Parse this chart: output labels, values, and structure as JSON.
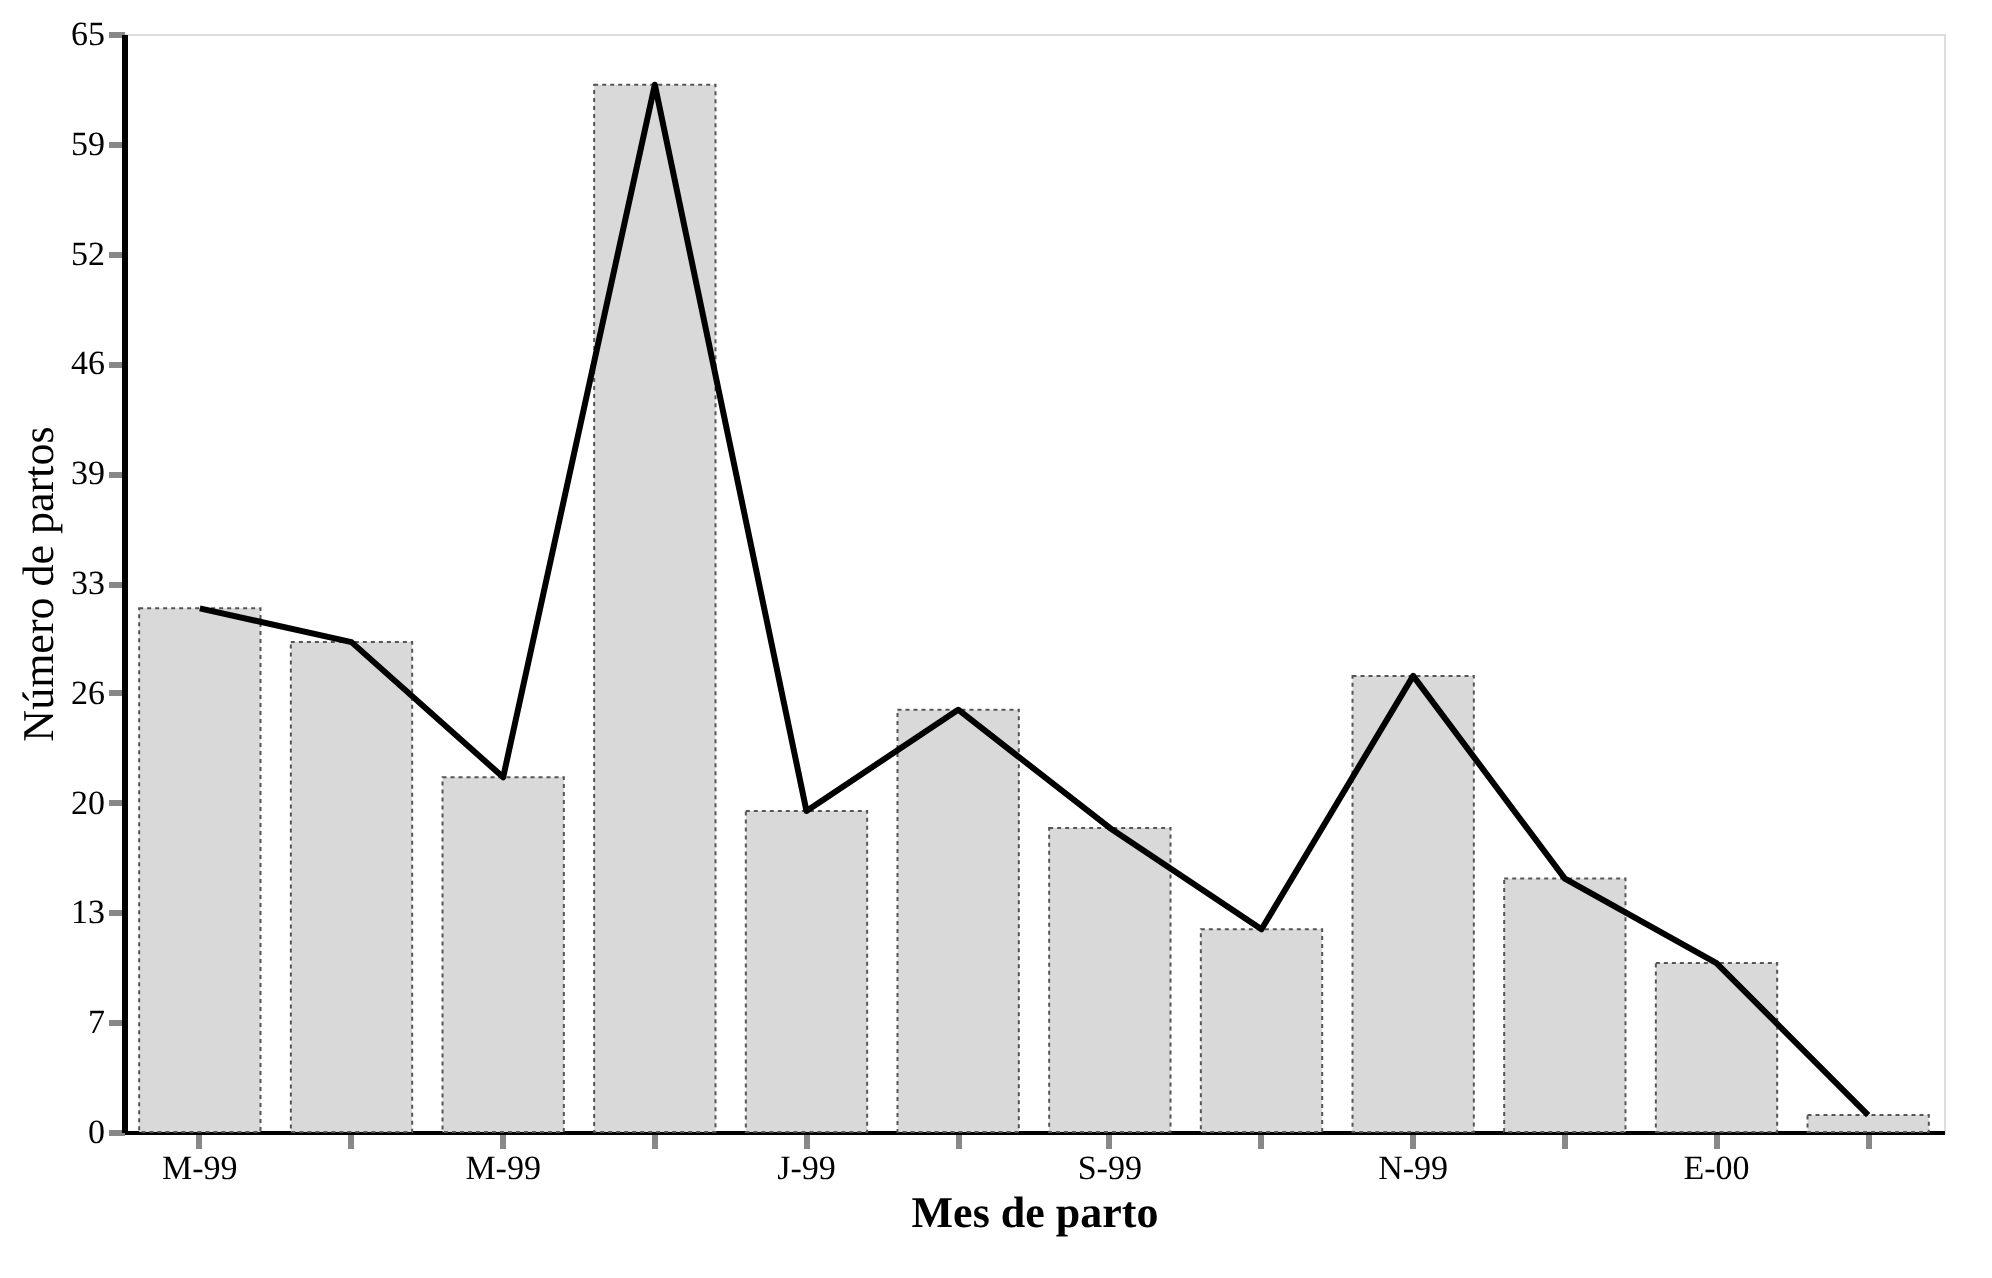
{
  "chart_data": {
    "type": "bar",
    "xlabel": "Mes de parto",
    "ylabel": "Número de partos",
    "categories": [
      "M-99",
      null,
      "M-99",
      null,
      "J-99",
      null,
      "S-99",
      null,
      "N-99",
      null,
      "E-00",
      null
    ],
    "series": [
      {
        "color": "#d9d9d9",
        "values": [
          31,
          29,
          21,
          62,
          19,
          25,
          18,
          12,
          27,
          15,
          10,
          1
        ]
      },
      {
        "type": "line",
        "color": "#000000",
        "values": [
          31,
          29,
          21,
          62,
          19,
          25,
          18,
          12,
          27,
          15,
          10,
          1
        ]
      }
    ],
    "ylim": [
      0,
      65
    ],
    "yticks": [
      0,
      {
        "value": 6.5,
        "label": "7"
      },
      13,
      {
        "value": 19.5,
        "label": "20"
      },
      26,
      {
        "value": 32.5,
        "label": "33"
      },
      39,
      {
        "value": 45.5,
        "label": "46"
      },
      52,
      {
        "value": 58.5,
        "label": "59"
      },
      65
    ],
    "grid": false
  }
}
